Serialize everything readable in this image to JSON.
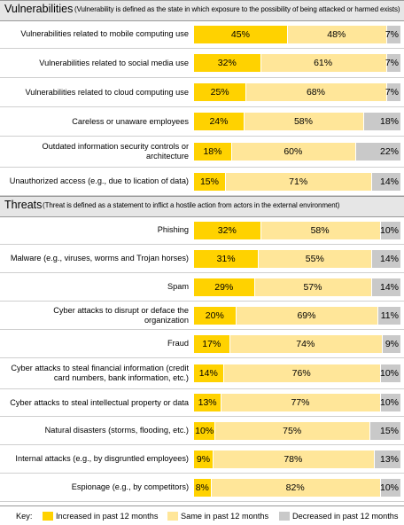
{
  "legend": {
    "key": "Key:",
    "increased": "Increased in past 12 months",
    "same": "Same in past 12 months",
    "decreased": "Decreased in past 12 months"
  },
  "colors": {
    "increased": "#ffd200",
    "same": "#ffe699",
    "decreased": "#c9c9c9"
  },
  "chart_data": [
    {
      "type": "bar",
      "stacked": true,
      "orientation": "horizontal",
      "title": "Vulnerabilities",
      "subtitle": "(Vulnerability is defined as the state in which exposure to the possibility of being attacked or harmed exists)",
      "categories": [
        "Vulnerabilities related to mobile computing use",
        "Vulnerabilities related to social media use",
        "Vulnerabilities related to cloud computing use",
        "Careless or unaware employees",
        "Outdated information security controls or architecture",
        "Unauthorized access (e.g., due to lication of data)"
      ],
      "series": [
        {
          "name": "Increased in past 12 months",
          "values": [
            45,
            32,
            25,
            24,
            18,
            15
          ]
        },
        {
          "name": "Same in past 12 months",
          "values": [
            48,
            61,
            68,
            58,
            60,
            71
          ]
        },
        {
          "name": "Decreased in past 12 months",
          "values": [
            7,
            7,
            7,
            18,
            22,
            14
          ]
        }
      ],
      "labels": [
        [
          "45%",
          "32%",
          "25%",
          "24%",
          "18%",
          "15%"
        ],
        [
          "48%",
          "61%",
          "68%",
          "58%",
          "60%",
          "71%"
        ],
        [
          "7%",
          "7%",
          "7%",
          "18%",
          "22%",
          "14%"
        ]
      ]
    },
    {
      "type": "bar",
      "stacked": true,
      "orientation": "horizontal",
      "title": "Threats",
      "subtitle": "(Threat is defined as a statement to inflict a hostile action from actors in the external environment)",
      "categories": [
        "Phishing",
        "Malware (e.g., viruses, worms and Trojan horses)",
        "Spam",
        "Cyber attacks to disrupt or deface the organization",
        "Fraud",
        "Cyber attacks to steal financial information (credit card numbers, bank information, etc.)",
        "Cyber attacks to steal intellectual property or data",
        "Natural disasters (storms, flooding, etc.)",
        "Internal attacks (e.g., by disgruntled employees)",
        "Espionage (e.g., by competitors)"
      ],
      "series": [
        {
          "name": "Increased in past 12 months",
          "values": [
            32,
            31,
            29,
            20,
            17,
            14,
            13,
            10,
            9,
            8
          ]
        },
        {
          "name": "Same in past 12 months",
          "values": [
            58,
            55,
            57,
            69,
            74,
            76,
            77,
            75,
            78,
            82
          ]
        },
        {
          "name": "Decreased in past 12 months",
          "values": [
            10,
            14,
            14,
            11,
            9,
            10,
            10,
            15,
            13,
            10
          ]
        }
      ],
      "labels": [
        [
          "32%",
          "31%",
          "29%",
          "20%",
          "17%",
          "14%",
          "13%",
          "10%",
          "9%",
          "8%"
        ],
        [
          "58%",
          "55%",
          "57%",
          "69%",
          "74%",
          "76%",
          "77%",
          "75%",
          "78%",
          "82%"
        ],
        [
          "10%",
          "14%",
          "14%",
          "11%",
          "9%",
          "10%",
          "10%",
          "15%",
          "13%",
          "10%"
        ]
      ]
    }
  ]
}
